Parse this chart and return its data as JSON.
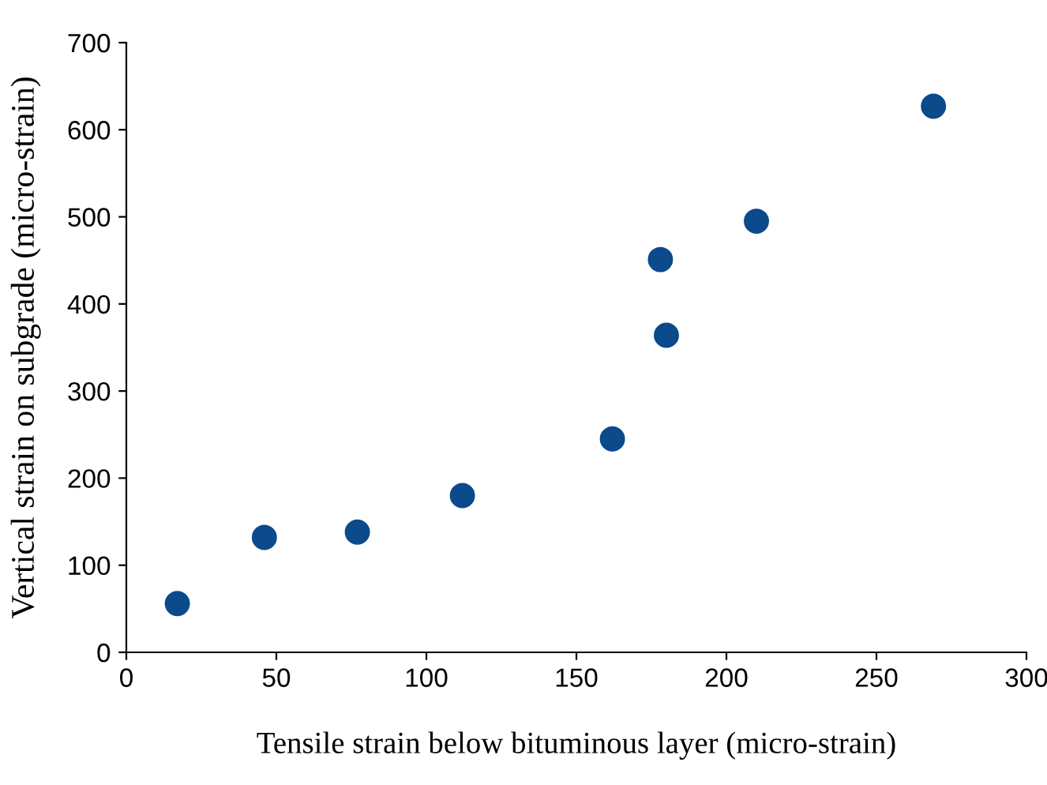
{
  "chart_data": {
    "type": "scatter",
    "xlabel": "Tensile strain below bituminous layer (micro-strain)",
    "ylabel": "Vertical strain on subgrade (micro-strain)",
    "x": [
      17,
      46,
      77,
      112,
      162,
      178,
      180,
      210,
      269
    ],
    "series": [
      {
        "color": "#0b4a8b",
        "values": [
          56,
          132,
          138,
          180,
          245,
          451,
          364,
          495,
          627
        ]
      }
    ],
    "xlim": [
      0,
      300
    ],
    "xticks": [
      0,
      50,
      100,
      150,
      200,
      250,
      300
    ],
    "ylim": [
      0,
      700
    ],
    "yticks": [
      0,
      100,
      200,
      300,
      400,
      500,
      600,
      700
    ],
    "grid": false,
    "legend": false,
    "marker": "circle"
  }
}
